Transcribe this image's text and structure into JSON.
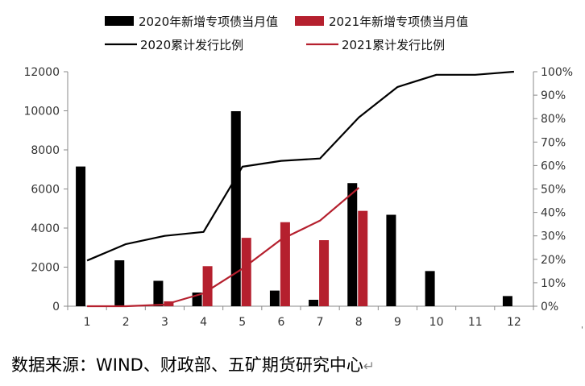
{
  "chart_data": {
    "type": "bar",
    "categories": [
      "1",
      "2",
      "3",
      "4",
      "5",
      "6",
      "7",
      "8",
      "9",
      "10",
      "11",
      "12"
    ],
    "series": [
      {
        "name": "2020年新增专项债当月值",
        "kind": "bar",
        "axis": "left",
        "color": "#000000",
        "values": [
          7150,
          2350,
          1300,
          700,
          9980,
          800,
          330,
          6300,
          4680,
          1800,
          0,
          520
        ]
      },
      {
        "name": "2021年新增专项债当月值",
        "kind": "bar",
        "axis": "left",
        "color": "#b5202e",
        "values": [
          0,
          0,
          250,
          2050,
          3500,
          4300,
          3380,
          4880,
          null,
          null,
          null,
          null
        ]
      },
      {
        "name": "2020累计发行比例",
        "kind": "line",
        "axis": "right",
        "color": "#000000",
        "values": [
          19.5,
          26.5,
          30,
          31.7,
          59.5,
          62,
          63,
          80.5,
          93.5,
          98.7,
          98.7,
          100
        ]
      },
      {
        "name": "2021累计发行比例",
        "kind": "line",
        "axis": "right",
        "color": "#b5202e",
        "values": [
          0,
          0,
          0.7,
          5.5,
          16,
          28.5,
          36.5,
          50.5,
          null,
          null,
          null,
          null
        ]
      }
    ],
    "y_left": {
      "min": 0,
      "max": 12000,
      "ticks": [
        "0",
        "2000",
        "4000",
        "6000",
        "8000",
        "10000",
        "12000"
      ]
    },
    "y_right": {
      "min": 0,
      "max": 100,
      "ticks": [
        "0%",
        "10%",
        "20%",
        "30%",
        "40%",
        "50%",
        "60%",
        "70%",
        "80%",
        "90%",
        "100%"
      ]
    },
    "grid": false,
    "legend_placement": "top"
  },
  "source_note": "数据来源：WIND、财政部、五矿期货研究中心",
  "return_mark": "↵",
  "corner_mark": "'"
}
